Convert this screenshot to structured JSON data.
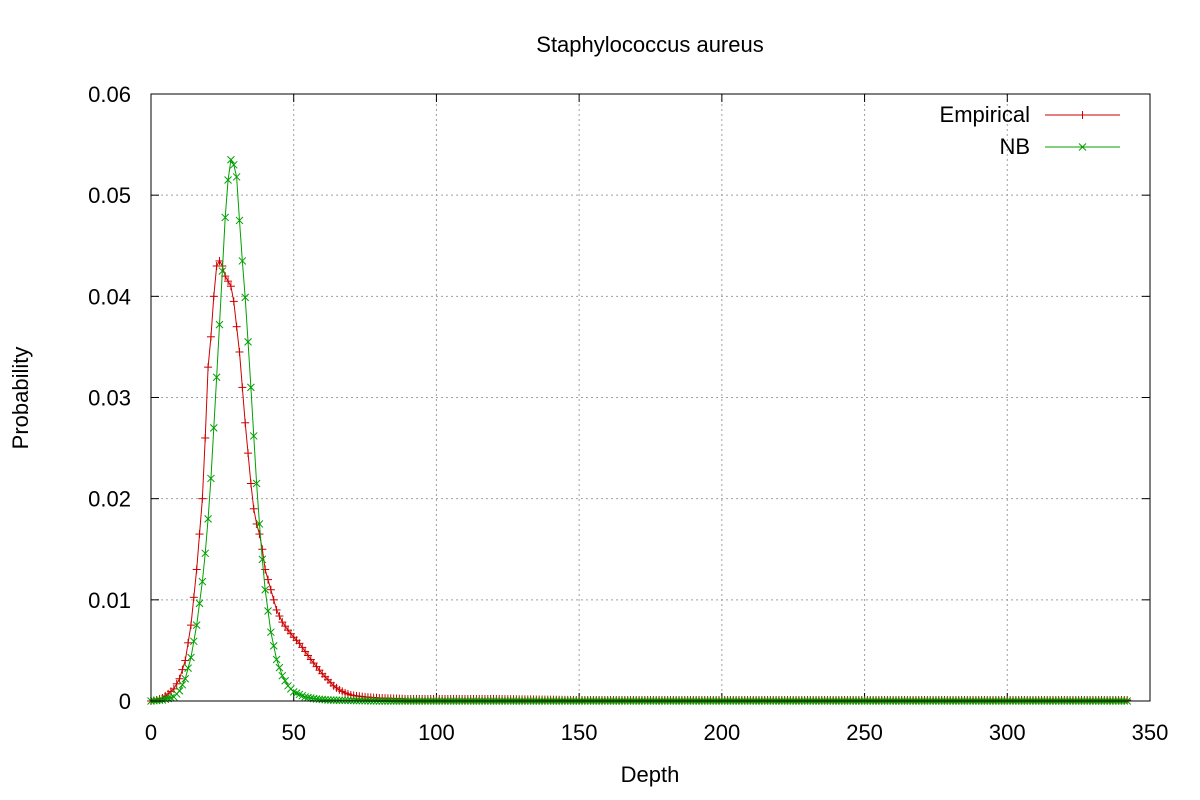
{
  "chart_data": {
    "type": "line",
    "title": "Staphylococcus aureus",
    "xlabel": "Depth",
    "ylabel": "Probability",
    "xlim": [
      0,
      350
    ],
    "ylim": [
      0,
      0.06
    ],
    "xticks": [
      0,
      50,
      100,
      150,
      200,
      250,
      300,
      350
    ],
    "yticks": [
      0,
      0.01,
      0.02,
      0.03,
      0.04,
      0.05,
      0.06
    ],
    "xtick_labels": [
      "0",
      "50",
      "100",
      "150",
      "200",
      "250",
      "300",
      "350"
    ],
    "ytick_labels": [
      "0",
      "0.01",
      "0.02",
      "0.03",
      "0.04",
      "0.05",
      "0.06"
    ],
    "grid": true,
    "legend_position": "top-right",
    "series": [
      {
        "name": "Empirical",
        "color": "#cc0000",
        "marker": "plus",
        "points": [
          [
            0,
            0
          ],
          [
            2,
            0.0001
          ],
          [
            4,
            0.0003
          ],
          [
            6,
            0.0007
          ],
          [
            8,
            0.0012
          ],
          [
            10,
            0.0022
          ],
          [
            12,
            0.004
          ],
          [
            14,
            0.0075
          ],
          [
            16,
            0.013
          ],
          [
            18,
            0.02
          ],
          [
            19,
            0.026
          ],
          [
            20,
            0.033
          ],
          [
            21,
            0.036
          ],
          [
            22,
            0.04
          ],
          [
            23,
            0.043
          ],
          [
            24,
            0.0435
          ],
          [
            25,
            0.043
          ],
          [
            26,
            0.042
          ],
          [
            27,
            0.0415
          ],
          [
            28,
            0.041
          ],
          [
            29,
            0.0395
          ],
          [
            30,
            0.037
          ],
          [
            31,
            0.0345
          ],
          [
            32,
            0.031
          ],
          [
            33,
            0.0275
          ],
          [
            34,
            0.0245
          ],
          [
            35,
            0.0215
          ],
          [
            36,
            0.019
          ],
          [
            37,
            0.0175
          ],
          [
            38,
            0.0165
          ],
          [
            39,
            0.015
          ],
          [
            40,
            0.013
          ],
          [
            42,
            0.011
          ],
          [
            44,
            0.009
          ],
          [
            46,
            0.0078
          ],
          [
            48,
            0.007
          ],
          [
            50,
            0.0063
          ],
          [
            52,
            0.0057
          ],
          [
            54,
            0.0049
          ],
          [
            56,
            0.0041
          ],
          [
            58,
            0.0034
          ],
          [
            60,
            0.0027
          ],
          [
            62,
            0.0021
          ],
          [
            64,
            0.0015
          ],
          [
            66,
            0.0011
          ],
          [
            68,
            0.0008
          ],
          [
            70,
            0.0006
          ],
          [
            72,
            0.0005
          ],
          [
            75,
            0.0004
          ],
          [
            80,
            0.0003
          ],
          [
            90,
            0.0002
          ],
          [
            100,
            0.0002
          ],
          [
            120,
            0.0002
          ],
          [
            150,
            0.0001
          ],
          [
            200,
            0.0001
          ],
          [
            250,
            0.0001
          ],
          [
            300,
            0.0001
          ],
          [
            342,
            0.0001
          ]
        ]
      },
      {
        "name": "NB",
        "color": "#00a000",
        "marker": "x",
        "points": [
          [
            0,
            0
          ],
          [
            4,
            0.0001
          ],
          [
            8,
            0.0004
          ],
          [
            10,
            0.001
          ],
          [
            12,
            0.0022
          ],
          [
            14,
            0.0043
          ],
          [
            16,
            0.0075
          ],
          [
            18,
            0.0118
          ],
          [
            19,
            0.0146
          ],
          [
            20,
            0.018
          ],
          [
            21,
            0.022
          ],
          [
            22,
            0.027
          ],
          [
            23,
            0.032
          ],
          [
            24,
            0.0372
          ],
          [
            25,
            0.0425
          ],
          [
            26,
            0.0478
          ],
          [
            27,
            0.0515
          ],
          [
            28,
            0.0535
          ],
          [
            29,
            0.053
          ],
          [
            30,
            0.0518
          ],
          [
            31,
            0.0475
          ],
          [
            32,
            0.0435
          ],
          [
            33,
            0.0399
          ],
          [
            34,
            0.0355
          ],
          [
            35,
            0.031
          ],
          [
            36,
            0.0262
          ],
          [
            37,
            0.0215
          ],
          [
            38,
            0.0175
          ],
          [
            39,
            0.014
          ],
          [
            40,
            0.011
          ],
          [
            42,
            0.0068
          ],
          [
            44,
            0.0041
          ],
          [
            46,
            0.0025
          ],
          [
            48,
            0.0015
          ],
          [
            50,
            0.0009
          ],
          [
            54,
            0.0004
          ],
          [
            58,
            0.0002
          ],
          [
            62,
            0.0001
          ],
          [
            70,
            5e-05
          ],
          [
            80,
            0
          ],
          [
            100,
            0
          ],
          [
            150,
            0
          ],
          [
            200,
            0
          ],
          [
            250,
            0
          ],
          [
            300,
            0
          ],
          [
            342,
            0
          ]
        ]
      }
    ]
  }
}
